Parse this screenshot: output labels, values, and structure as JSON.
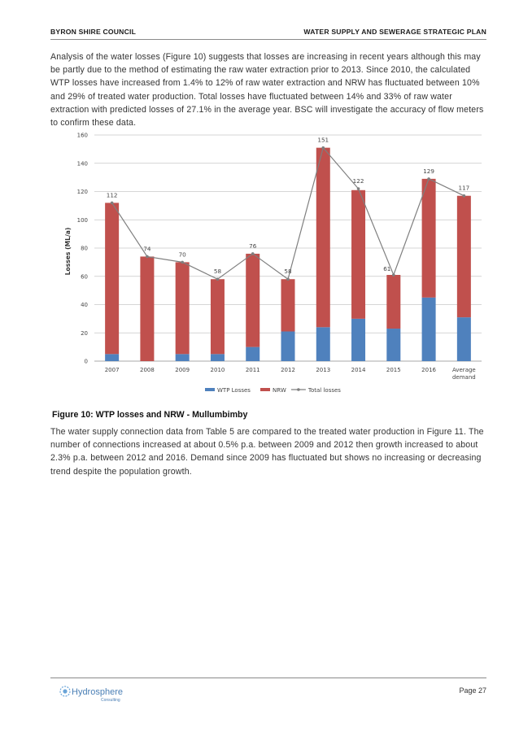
{
  "header": {
    "left": "BYRON SHIRE COUNCIL",
    "right": "WATER SUPPLY AND SEWERAGE STRATEGIC PLAN"
  },
  "paragraph1": "Analysis of the water losses (Figure 10) suggests that losses are increasing in recent years although this may be partly due to the method of estimating the raw water extraction prior to 2013. Since 2010, the calculated WTP losses have increased from 1.4% to 12% of raw water extraction and NRW has fluctuated between 10% and 29% of treated water production. Total losses have fluctuated between 14% and 33% of raw water extraction with predicted losses of 27.1% in the average year. BSC will investigate the accuracy of flow meters to confirm these data.",
  "figure_caption": "Figure 10: WTP losses and NRW - Mullumbimby",
  "paragraph2": "The water supply connection data from Table 5 are compared to the treated water production in Figure 11. The number of connections increased at about 0.5% p.a. between 2009 and 2012 then growth increased to about 2.3% p.a. between 2012 and 2016. Demand since 2009 has fluctuated but shows no increasing or decreasing trend despite the population growth.",
  "footer": {
    "logo_text": "Hydrosphere",
    "logo_subtext": "Consulting",
    "page": "Page 27"
  },
  "chart_data": {
    "type": "bar",
    "stacked": true,
    "categories": [
      "2007",
      "2008",
      "2009",
      "2010",
      "2011",
      "2012",
      "2013",
      "2014",
      "2015",
      "2016",
      "Average demand"
    ],
    "series": [
      {
        "name": "WTP Losses",
        "type": "bar",
        "color": "#4f81bd",
        "values": [
          5,
          0,
          5,
          5,
          10,
          21,
          24,
          30,
          23,
          45,
          31
        ]
      },
      {
        "name": "NRW",
        "type": "bar",
        "color": "#c0504d",
        "values": [
          107,
          74,
          65,
          53,
          66,
          37,
          127,
          91,
          38,
          84,
          86
        ]
      },
      {
        "name": "Total losses",
        "type": "line",
        "color": "#7f7f7f",
        "values": [
          112,
          74,
          70,
          58,
          76,
          58,
          151,
          122,
          61,
          129,
          117
        ]
      }
    ],
    "data_labels": [
      "112",
      "74",
      "70",
      "58",
      "76",
      "58",
      "151",
      "122",
      "61",
      "129",
      "117"
    ],
    "ylabel": "Losses (ML/a)",
    "ylim": [
      0,
      160
    ],
    "yticks": [
      "0",
      "20",
      "40",
      "60",
      "80",
      "100",
      "120",
      "140",
      "160"
    ],
    "grid": true,
    "legend_position": "bottom"
  }
}
